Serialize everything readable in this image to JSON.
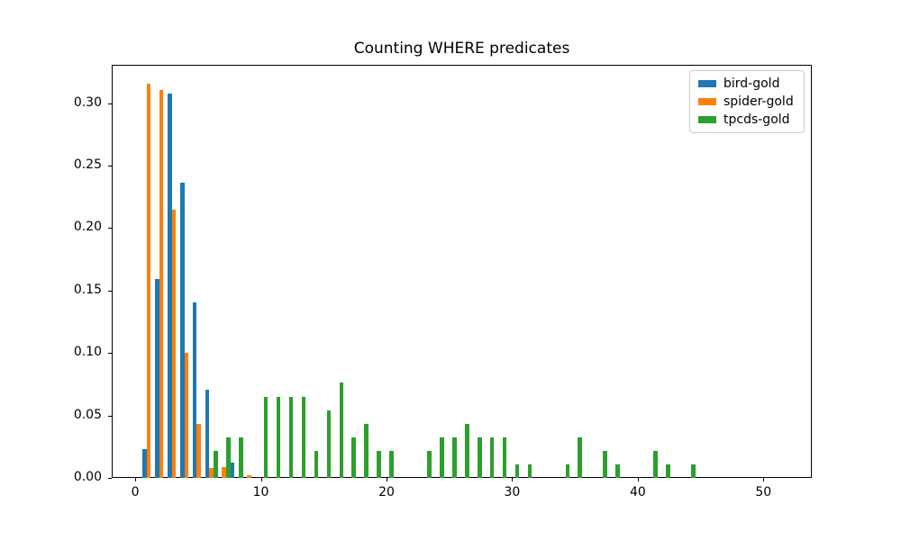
{
  "figure": {
    "title": "Counting WHERE predicates"
  },
  "chart_data": {
    "type": "bar",
    "title": "Counting WHERE predicates",
    "xlabel": "",
    "ylabel": "",
    "grid": false,
    "legend_position": "upper right",
    "xlim": [
      -1.87,
      53.85
    ],
    "ylim": [
      0,
      0.3307
    ],
    "xticks": [
      0,
      10,
      20,
      30,
      40,
      50
    ],
    "xtick_labels": [
      "0",
      "10",
      "20",
      "30",
      "40",
      "50"
    ],
    "yticks": [
      0.0,
      0.05,
      0.1,
      0.15,
      0.2,
      0.25,
      0.3
    ],
    "ytick_labels": [
      "0.00",
      "0.05",
      "0.10",
      "0.15",
      "0.20",
      "0.25",
      "0.30"
    ],
    "bar_slot_width": 0.3333,
    "series_offsets": [
      -0.3333,
      0,
      0.3333
    ],
    "series": [
      {
        "name": "bird-gold",
        "color": "#1f77b4",
        "points": [
          [
            1,
            0.023
          ],
          [
            2,
            0.159
          ],
          [
            3,
            0.3077
          ],
          [
            4,
            0.2365
          ],
          [
            5,
            0.1405
          ],
          [
            6,
            0.0705
          ],
          [
            8,
            0.012
          ]
        ]
      },
      {
        "name": "spider-gold",
        "color": "#ff7f0e",
        "points": [
          [
            1,
            0.3156
          ],
          [
            2,
            0.3107
          ],
          [
            3,
            0.215
          ],
          [
            4,
            0.1
          ],
          [
            5,
            0.043
          ],
          [
            6,
            0.008
          ],
          [
            7,
            0.009
          ],
          [
            9,
            0.002
          ]
        ]
      },
      {
        "name": "tpcds-gold",
        "color": "#2ca02c",
        "points": [
          [
            6,
            0.0217
          ],
          [
            7,
            0.0326
          ],
          [
            8,
            0.0326
          ],
          [
            10,
            0.0652
          ],
          [
            11,
            0.0652
          ],
          [
            12,
            0.0652
          ],
          [
            13,
            0.0652
          ],
          [
            14,
            0.0217
          ],
          [
            15,
            0.0543
          ],
          [
            16,
            0.0761
          ],
          [
            17,
            0.0326
          ],
          [
            18,
            0.0435
          ],
          [
            19,
            0.0217
          ],
          [
            20,
            0.0217
          ],
          [
            23,
            0.0217
          ],
          [
            24,
            0.0326
          ],
          [
            25,
            0.0326
          ],
          [
            26,
            0.0435
          ],
          [
            27,
            0.0326
          ],
          [
            28,
            0.0326
          ],
          [
            29,
            0.0326
          ],
          [
            30,
            0.0109
          ],
          [
            31,
            0.0109
          ],
          [
            34,
            0.0109
          ],
          [
            35,
            0.0326
          ],
          [
            37,
            0.0217
          ],
          [
            38,
            0.0109
          ],
          [
            41,
            0.0217
          ],
          [
            42,
            0.0109
          ],
          [
            44,
            0.0109
          ]
        ]
      }
    ]
  }
}
